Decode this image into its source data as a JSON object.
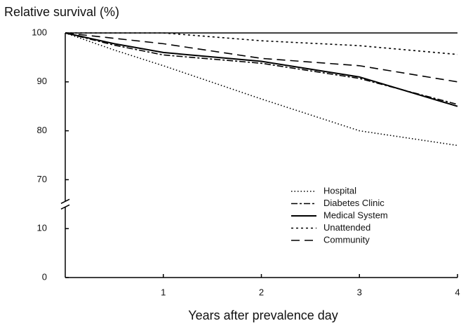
{
  "chart_data": {
    "type": "line",
    "ylabel": "Relative survival (%)",
    "xlabel": "Years after prevalence day",
    "xlim": [
      0,
      4
    ],
    "xticks": [
      1,
      2,
      3,
      4
    ],
    "ylim": [
      0,
      100
    ],
    "yticks": [
      0,
      10,
      70,
      80,
      90,
      100
    ],
    "ybreak": [
      10,
      70
    ],
    "legend": "right",
    "series": [
      {
        "name": "Hospital",
        "color": "#000000",
        "style": "dotted",
        "x": [
          0,
          0.5,
          1,
          2,
          3,
          4
        ],
        "values": [
          100,
          96.5,
          93.3,
          86.5,
          80,
          77
        ]
      },
      {
        "name": "Diabetes Clinic",
        "color": "#000000",
        "style": "dashdot",
        "x": [
          0,
          0.5,
          1,
          2,
          3,
          4
        ],
        "values": [
          100,
          97.5,
          95.5,
          93.8,
          90.7,
          85.4
        ]
      },
      {
        "name": "Medical System",
        "color": "#000000",
        "style": "solid",
        "x": [
          0,
          0.5,
          1,
          2,
          3,
          4
        ],
        "values": [
          100,
          97.8,
          96,
          94.2,
          91,
          85
        ]
      },
      {
        "name": "Unattended",
        "color": "#000000",
        "style": "shortdash",
        "x": [
          0,
          0.5,
          1,
          2,
          3,
          4
        ],
        "values": [
          100,
          100,
          100,
          98.4,
          97.4,
          95.6
        ]
      },
      {
        "name": "Community",
        "color": "#000000",
        "style": "longdash",
        "x": [
          0,
          0.5,
          1,
          2,
          3,
          4
        ],
        "values": [
          100,
          98.9,
          97.8,
          94.8,
          93.3,
          90
        ]
      }
    ]
  }
}
